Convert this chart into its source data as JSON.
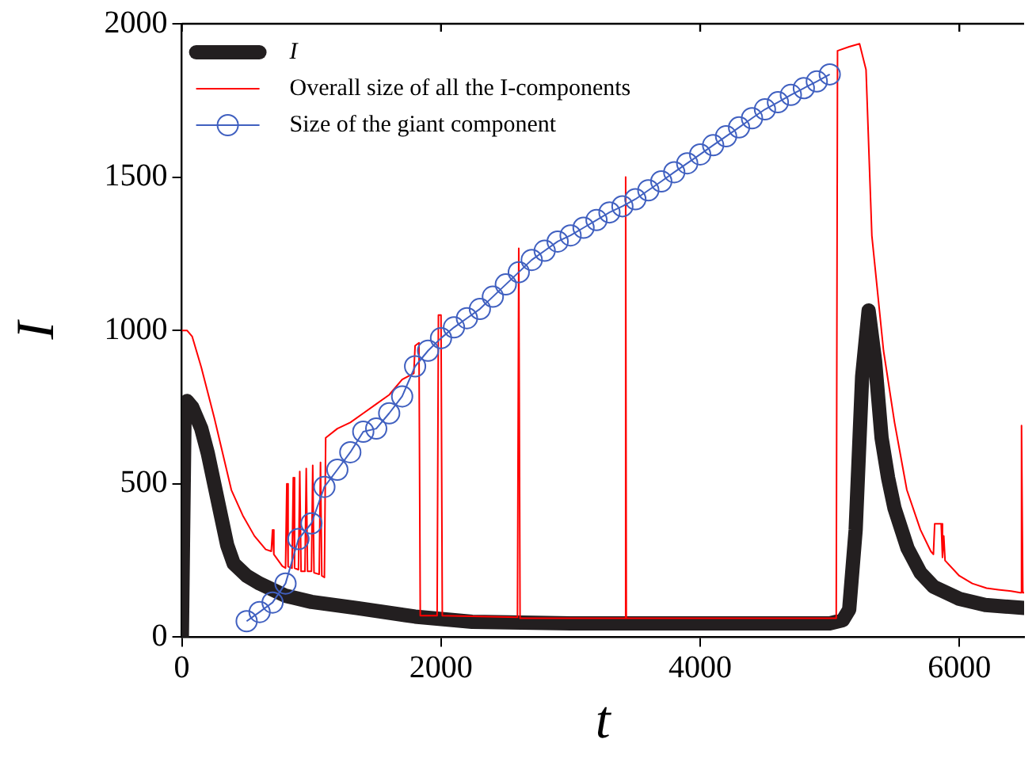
{
  "chart_data": {
    "type": "line",
    "xlabel": "t",
    "ylabel": "I",
    "xlim": [
      0,
      6500
    ],
    "ylim": [
      0,
      2000
    ],
    "xticks": [
      0,
      2000,
      4000,
      6000
    ],
    "yticks": [
      0,
      500,
      1000,
      1500,
      2000
    ],
    "grid": false,
    "legend": "top left",
    "series": [
      {
        "name": "I",
        "color": "#231f20",
        "marker": "none",
        "x": [
          0,
          20,
          40,
          80,
          100,
          150,
          200,
          250,
          300,
          350,
          400,
          500,
          600,
          800,
          1000,
          1350,
          1800,
          2240,
          3000,
          4000,
          5000,
          5100,
          5150,
          5200,
          5250,
          5300,
          5350,
          5400,
          5450,
          5500,
          5600,
          5700,
          5800,
          6000,
          6200,
          6500
        ],
        "values": [
          0,
          700,
          770,
          750,
          730,
          680,
          600,
          500,
          400,
          300,
          240,
          200,
          175,
          135,
          115,
          95,
          67,
          50,
          45,
          45,
          45,
          55,
          90,
          350,
          850,
          1065,
          900,
          650,
          520,
          420,
          290,
          210,
          165,
          125,
          105,
          95
        ]
      },
      {
        "name": "Overall size of all the I-components",
        "color": "#ff0000",
        "marker": "none",
        "x": [
          0,
          40,
          80,
          150,
          250,
          382,
          470,
          560,
          647,
          690,
          700,
          710,
          775,
          800,
          810,
          820,
          850,
          860,
          870,
          900,
          910,
          920,
          950,
          960,
          970,
          1000,
          1010,
          1020,
          1060,
          1070,
          1080,
          1100,
          1110,
          1200,
          1300,
          1400,
          1500,
          1600,
          1700,
          1790,
          1800,
          1830,
          1840,
          1970,
          1980,
          2000,
          2010,
          2590,
          2600,
          2610,
          3420,
          3425,
          3430,
          5050,
          5060,
          5150,
          5230,
          5280,
          5325,
          5415,
          5500,
          5595,
          5700,
          5780,
          5800,
          5810,
          5860,
          5870,
          5880,
          5890,
          6000,
          6100,
          6210,
          6300,
          6400,
          6470,
          6480,
          6490,
          6500
        ],
        "values": [
          1000,
          1000,
          980,
          880,
          716,
          480,
          397,
          330,
          286,
          280,
          350,
          270,
          232,
          225,
          500,
          230,
          225,
          520,
          225,
          220,
          540,
          215,
          215,
          550,
          215,
          215,
          560,
          210,
          205,
          570,
          200,
          195,
          650,
          680,
          700,
          730,
          760,
          790,
          840,
          860,
          950,
          960,
          70,
          70,
          1050,
          1050,
          70,
          65,
          1268,
          62,
          62,
          1500,
          62,
          62,
          1912,
          1925,
          1935,
          1850,
          1309,
          934,
          700,
          480,
          350,
          280,
          270,
          370,
          370,
          260,
          330,
          250,
          200,
          175,
          160,
          155,
          150,
          145,
          690,
          145,
          145
        ]
      },
      {
        "name": "Size of the giant component",
        "color": "#4060c0",
        "marker": "circle",
        "x": [
          500,
          600,
          700,
          800,
          900,
          1000,
          1100,
          1200,
          1300,
          1400,
          1500,
          1600,
          1700,
          1800,
          1900,
          2000,
          2100,
          2200,
          2300,
          2400,
          2500,
          2600,
          2700,
          2800,
          2900,
          3000,
          3100,
          3200,
          3300,
          3400,
          3500,
          3600,
          3700,
          3800,
          3900,
          4000,
          4100,
          4200,
          4300,
          4400,
          4500,
          4600,
          4700,
          4800,
          4900,
          5000
        ],
        "values": [
          52,
          82,
          113,
          175,
          320,
          371,
          490,
          546,
          603,
          670,
          680,
          730,
          785,
          883,
          934,
          975,
          1010,
          1040,
          1070,
          1110,
          1150,
          1190,
          1230,
          1260,
          1290,
          1310,
          1335,
          1360,
          1385,
          1405,
          1428,
          1457,
          1486,
          1516,
          1545,
          1574,
          1604,
          1633,
          1662,
          1692,
          1721,
          1744,
          1768,
          1790,
          1812,
          1835
        ]
      }
    ]
  }
}
